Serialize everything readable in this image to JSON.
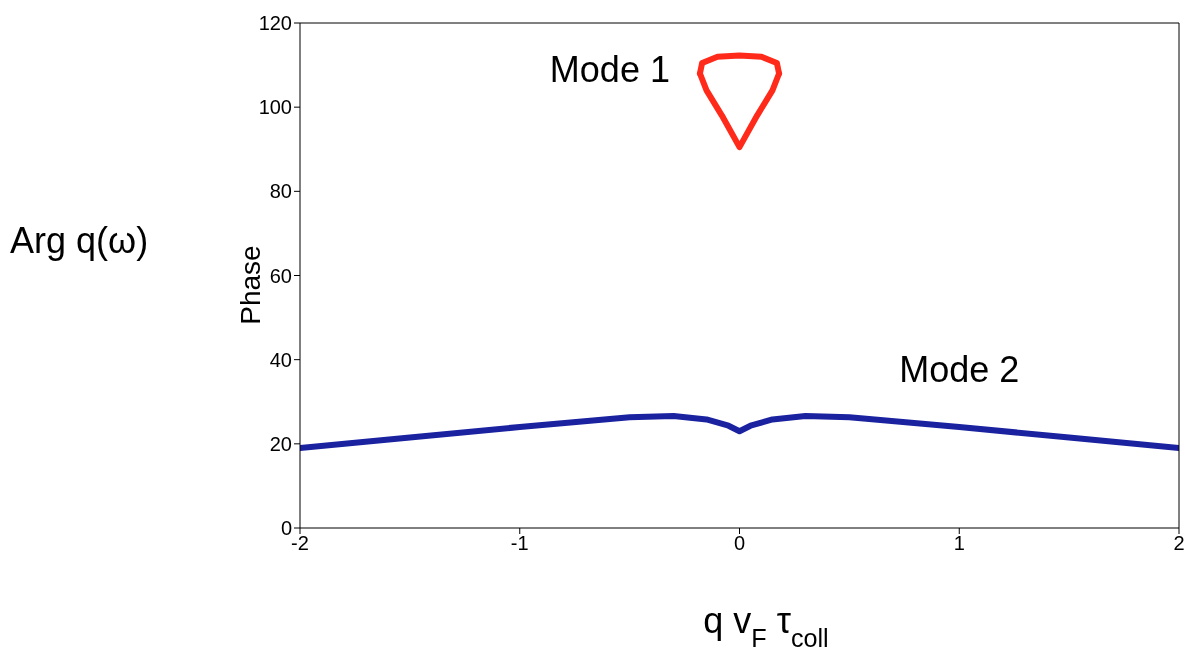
{
  "chart_data": {
    "type": "line",
    "xlabel": "q v$_{F}$ τ$_{coll}$",
    "ylabel": "Phase",
    "annotations": [
      "Arg q(ω)"
    ],
    "xlim": [
      -2,
      2
    ],
    "xticks": [
      -2,
      -1,
      0,
      1,
      2
    ],
    "ylim": [
      0,
      120
    ],
    "yticks": [
      0,
      20,
      40,
      60,
      80,
      100,
      120
    ],
    "grid": false,
    "legend": false,
    "marker": "none",
    "line_style": "solid",
    "series": [
      {
        "name": "Mode 1",
        "color": "#ff2a1a",
        "x": [
          -0.18,
          -0.15,
          -0.08,
          0,
          0.08,
          0.15,
          0.18
        ],
        "values": [
          108,
          104,
          98,
          90.5,
          98,
          104,
          108
        ]
      },
      {
        "color": "#ff2a1a",
        "x": [
          -0.18,
          -0.17,
          -0.1,
          0,
          0.1,
          0.17,
          0.18
        ],
        "values": [
          108,
          110.5,
          112,
          112.3,
          112,
          110.5,
          108
        ]
      },
      {
        "name": "Mode 2",
        "color": "#1a22a0",
        "x": [
          -2,
          -1.5,
          -1,
          -0.5,
          -0.3,
          -0.15,
          -0.05,
          0,
          0.05,
          0.15,
          0.3,
          0.5,
          1,
          1.5,
          2
        ],
        "values": [
          19,
          21.5,
          24,
          26.3,
          26.6,
          25.8,
          24.3,
          23,
          24.3,
          25.8,
          26.6,
          26.3,
          24,
          21.5,
          19
        ]
      }
    ]
  }
}
